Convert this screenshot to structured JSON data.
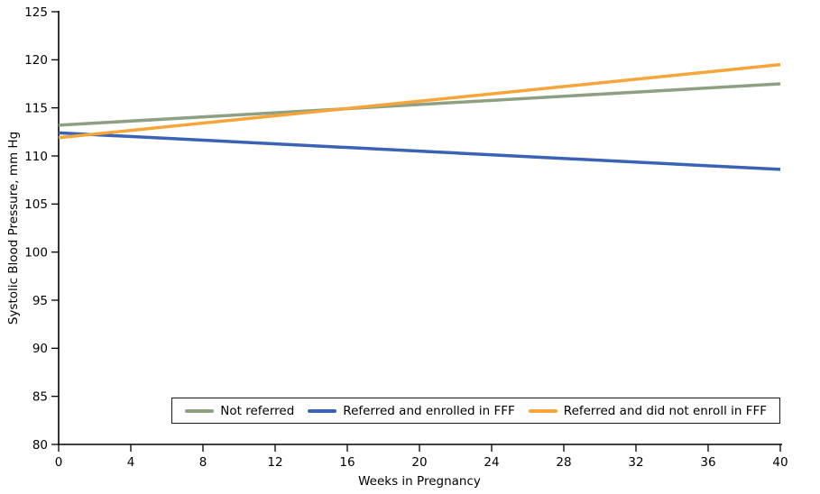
{
  "chart_data": {
    "type": "line",
    "xlabel": "Weeks in Pregnancy",
    "ylabel": "Systolic Blood Pressure, mm Hg",
    "xlim": [
      0,
      40
    ],
    "ylim": [
      80,
      125
    ],
    "x_ticks": [
      0,
      4,
      8,
      12,
      16,
      20,
      24,
      28,
      32,
      36,
      40
    ],
    "y_ticks": [
      80,
      85,
      90,
      95,
      100,
      105,
      110,
      115,
      120,
      125
    ],
    "grid": false,
    "legend_position": "inside-bottom-right",
    "axis_color": "#000000",
    "series": [
      {
        "name": "Not referred",
        "color": "#8DA182",
        "x": [
          0,
          40
        ],
        "y": [
          113.2,
          117.5
        ]
      },
      {
        "name": "Referred and enrolled in FFF",
        "color": "#3A63B5",
        "x": [
          0,
          40
        ],
        "y": [
          112.4,
          108.6
        ]
      },
      {
        "name": "Referred and did not enroll in FFF",
        "color": "#F6A53B",
        "x": [
          0,
          40
        ],
        "y": [
          111.9,
          119.5
        ]
      }
    ]
  }
}
